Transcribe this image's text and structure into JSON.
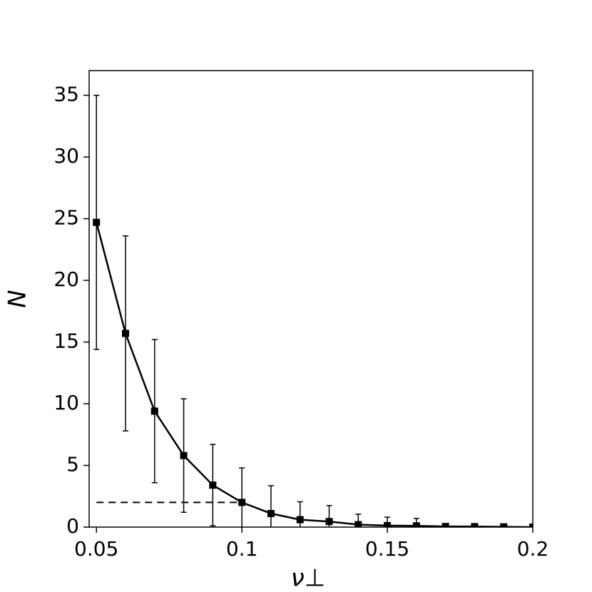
{
  "chart_data": {
    "type": "line",
    "xlabel": "ν⊥",
    "ylabel": "N",
    "x": [
      0.05,
      0.06,
      0.07,
      0.08,
      0.09,
      0.1,
      0.11,
      0.12,
      0.13,
      0.14,
      0.15,
      0.16,
      0.17,
      0.18,
      0.19,
      0.2
    ],
    "values": [
      24.7,
      15.7,
      9.4,
      5.8,
      3.4,
      2.0,
      1.1,
      0.6,
      0.45,
      0.2,
      0.12,
      0.1,
      0.05,
      0.04,
      0.02,
      0.0
    ],
    "errors": [
      10.3,
      7.9,
      5.8,
      4.6,
      3.3,
      2.8,
      2.25,
      1.45,
      1.3,
      0.85,
      0.68,
      0.6,
      0.15,
      0.1,
      0.05,
      0.02
    ],
    "color": "#000000",
    "hline": {
      "value": 2,
      "xrange": [
        0.05,
        0.1
      ]
    },
    "xlim": [
      0.0475,
      0.2
    ],
    "ylim": [
      0,
      37
    ],
    "xticks": [
      0.05,
      0.1,
      0.15,
      0.2
    ],
    "yticks": [
      0,
      5,
      10,
      15,
      20,
      25,
      30,
      35
    ],
    "grid": false
  }
}
